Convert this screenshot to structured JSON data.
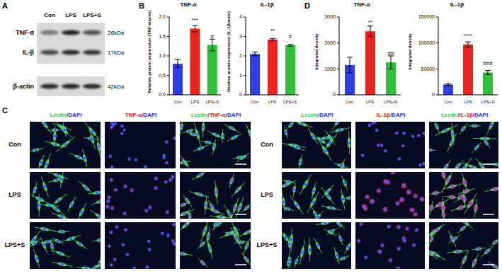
{
  "panel_labels": [
    "A",
    "B",
    "C",
    "D"
  ],
  "blot": {
    "lanes": [
      "Con",
      "LPS",
      "LPS+S"
    ],
    "rows": [
      {
        "label": "TNF-α",
        "size": "26kDa"
      },
      {
        "label": "IL-β",
        "size": "17kDa"
      },
      {
        "label": "β-actin",
        "size": "42kDa"
      }
    ]
  },
  "chart_data": [
    {
      "type": "bar",
      "title": "TNF-α",
      "y_label": "Relative protein expression (TNF-α/actin)",
      "categories": [
        "Con",
        "LPS",
        "LPS+S"
      ],
      "values": [
        0.8,
        1.7,
        1.28
      ],
      "errors": [
        0.1,
        0.08,
        0.15
      ],
      "colors": [
        "#2f3fe0",
        "#e8251f",
        "#2fbf3a"
      ],
      "ylim": [
        0,
        2
      ],
      "yticks": [
        {
          "value": 0,
          "label": "0.0"
        },
        0.5,
        {
          "value": 1,
          "label": "1.0"
        },
        1.5,
        {
          "value": 2,
          "label": "2.0"
        }
      ],
      "annotations": [
        {
          "category": "LPS",
          "text": "***"
        },
        {
          "category": "LPS+S",
          "text": "#"
        }
      ]
    },
    {
      "type": "bar",
      "title": "IL-1β",
      "y_label": "Relative protein expression (IL-1β/actin)",
      "categories": [
        "Con",
        "LPS",
        "LPS+S"
      ],
      "values": [
        2.1,
        2.85,
        2.55
      ],
      "errors": [
        0.1,
        0.05,
        0.05
      ],
      "colors": [
        "#2f3fe0",
        "#e8251f",
        "#2fbf3a"
      ],
      "ylim": [
        0,
        4
      ],
      "yticks": [
        0,
        1,
        2,
        3,
        4
      ],
      "annotations": [
        {
          "category": "LPS",
          "text": "**"
        },
        {
          "category": "LPS+S",
          "text": "#"
        }
      ]
    },
    {
      "type": "bar",
      "title": "TNF-α",
      "y_label": "Integrated density",
      "categories": [
        "Con",
        "LPS",
        "LPS+S"
      ],
      "values": [
        1150,
        2450,
        1250
      ],
      "errors": [
        300,
        200,
        250
      ],
      "colors": [
        "#2f3fe0",
        "#e8251f",
        "#2fbf3a"
      ],
      "ylim": [
        0,
        3000
      ],
      "yticks": [
        0,
        1000,
        2000,
        3000
      ],
      "annotations": [
        {
          "category": "LPS",
          "text": "**"
        },
        {
          "category": "LPS+S",
          "text": "##"
        }
      ]
    },
    {
      "type": "bar",
      "title": "IL-1β",
      "y_label": "Integrated density",
      "categories": [
        "Con",
        "LPS",
        "LPS+S"
      ],
      "values": [
        20000,
        97000,
        43000
      ],
      "errors": [
        2000,
        5000,
        4000
      ],
      "colors": [
        "#2f3fe0",
        "#e8251f",
        "#2fbf3a"
      ],
      "ylim": [
        0,
        150000
      ],
      "yticks": [
        0,
        50000,
        100000,
        150000
      ],
      "annotations": [
        {
          "category": "LPS",
          "text": "****"
        },
        {
          "category": "LPS+S",
          "text": "###"
        }
      ]
    }
  ],
  "micrographs": {
    "rows": [
      "Con",
      "LPS",
      "LPS+S"
    ],
    "groups": [
      {
        "headers": [
          [
            {
              "text": "Lectin",
              "color": "#2ecc40"
            },
            {
              "text": "/DAPI",
              "color": "#1d2bd8"
            }
          ],
          [
            {
              "text": "TNF-α",
              "color": "#e0201c"
            },
            {
              "text": "/DAPI",
              "color": "#1d2bd8"
            }
          ],
          [
            {
              "text": "Lectin",
              "color": "#2ecc40"
            },
            {
              "text": "/TNF-α",
              "color": "#e0201c"
            },
            {
              "text": "/DAPI",
              "color": "#1d2bd8"
            }
          ]
        ]
      },
      {
        "headers": [
          [
            {
              "text": "Lectin",
              "color": "#2ecc40"
            },
            {
              "text": "/DAPI",
              "color": "#1d2bd8"
            }
          ],
          [
            {
              "text": "IL-1β",
              "color": "#e0201c"
            },
            {
              "text": "/DAPI",
              "color": "#1d2bd8"
            }
          ],
          [
            {
              "text": "Lectin",
              "color": "#2ecc40"
            },
            {
              "text": "/IL-1β",
              "color": "#e0201c"
            },
            {
              "text": "/DAPI",
              "color": "#1d2bd8"
            }
          ]
        ]
      }
    ]
  }
}
